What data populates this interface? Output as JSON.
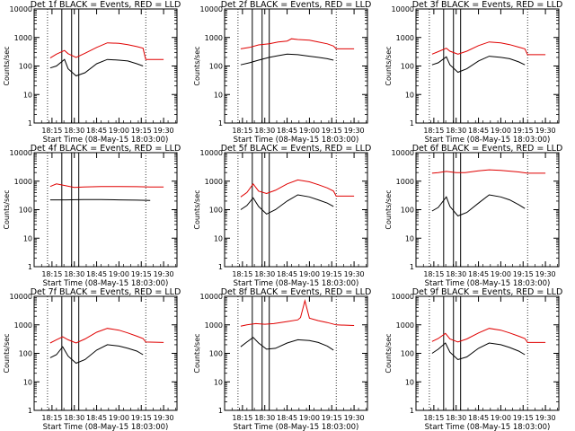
{
  "figure": {
    "x_axis_title": "Start Time (08-May-15 18:03:00)",
    "y_axis_title": "Counts/sec",
    "y_ticks": [
      "1",
      "10",
      "100",
      "1000",
      "10000"
    ],
    "x_ticks": [
      "18:15",
      "18:30",
      "18:45",
      "19:00",
      "19:15",
      "19:30"
    ]
  },
  "colors": {
    "events": "#000000",
    "lld": "#e00000",
    "axes": "#000000"
  },
  "chart_data": [
    {
      "type": "line",
      "title": "Det 1f BLACK = Events, RED = LLD",
      "yscale": "log",
      "ylim": [
        1,
        10000
      ],
      "series": [
        {
          "name": "Events",
          "color": "#000000",
          "x": [
            18.23,
            18.3,
            18.39,
            18.43,
            18.52,
            18.62,
            18.75,
            18.87,
            19.0,
            19.1,
            19.2,
            19.27
          ],
          "y": [
            85,
            100,
            170,
            80,
            45,
            58,
            120,
            170,
            160,
            150,
            120,
            100
          ]
        },
        {
          "name": "LLD",
          "color": "#e00000",
          "x": [
            18.23,
            18.3,
            18.39,
            18.43,
            18.52,
            18.62,
            18.75,
            18.87,
            19.0,
            19.1,
            19.2,
            19.27,
            19.3,
            19.5
          ],
          "y": [
            190,
            260,
            350,
            270,
            200,
            280,
            450,
            650,
            620,
            560,
            480,
            420,
            170,
            170
          ]
        }
      ]
    },
    {
      "type": "line",
      "title": "Det 2f BLACK = Events, RED = LLD",
      "yscale": "log",
      "ylim": [
        1,
        10000
      ],
      "series": [
        {
          "name": "Events",
          "color": "#000000",
          "x": [
            18.23,
            18.33,
            18.43,
            18.55,
            18.65,
            18.75,
            18.87,
            19.0,
            19.1,
            19.2,
            19.27
          ],
          "y": [
            110,
            130,
            160,
            200,
            230,
            260,
            250,
            220,
            200,
            180,
            160
          ]
        },
        {
          "name": "LLD",
          "color": "#e00000",
          "x": [
            18.23,
            18.33,
            18.43,
            18.55,
            18.65,
            18.75,
            18.8,
            18.87,
            19.0,
            19.1,
            19.2,
            19.27,
            19.3,
            19.5
          ],
          "y": [
            400,
            450,
            550,
            600,
            700,
            750,
            900,
            850,
            800,
            700,
            600,
            500,
            400,
            400
          ]
        }
      ]
    },
    {
      "type": "line",
      "title": "Det 3f BLACK = Events, RED = LLD",
      "yscale": "log",
      "ylim": [
        1,
        10000
      ],
      "series": [
        {
          "name": "Events",
          "color": "#000000",
          "x": [
            18.23,
            18.3,
            18.39,
            18.43,
            18.52,
            18.62,
            18.75,
            18.87,
            19.0,
            19.1,
            19.2,
            19.27
          ],
          "y": [
            110,
            130,
            210,
            110,
            60,
            80,
            150,
            220,
            200,
            180,
            140,
            110
          ]
        },
        {
          "name": "LLD",
          "color": "#e00000",
          "x": [
            18.23,
            18.3,
            18.39,
            18.43,
            18.52,
            18.62,
            18.75,
            18.87,
            19.0,
            19.1,
            19.2,
            19.27,
            19.3,
            19.5
          ],
          "y": [
            260,
            320,
            420,
            330,
            260,
            330,
            520,
            700,
            650,
            560,
            460,
            400,
            250,
            250
          ]
        }
      ]
    },
    {
      "type": "line",
      "title": "Det 4f BLACK = Events, RED = LLD",
      "yscale": "log",
      "ylim": [
        1,
        10000
      ],
      "series": [
        {
          "name": "Events",
          "color": "#000000",
          "x": [
            18.23,
            18.4,
            18.6,
            18.8,
            19.0,
            19.2,
            19.35
          ],
          "y": [
            220,
            220,
            225,
            225,
            220,
            215,
            210
          ]
        },
        {
          "name": "LLD",
          "color": "#e00000",
          "x": [
            18.23,
            18.3,
            18.4,
            18.5,
            18.6,
            18.8,
            19.0,
            19.2,
            19.35,
            19.5
          ],
          "y": [
            650,
            800,
            700,
            600,
            620,
            650,
            650,
            640,
            620,
            620
          ]
        }
      ]
    },
    {
      "type": "line",
      "title": "Det 5f BLACK = Events, RED = LLD",
      "yscale": "log",
      "ylim": [
        1,
        10000
      ],
      "series": [
        {
          "name": "Events",
          "color": "#000000",
          "x": [
            18.23,
            18.3,
            18.37,
            18.43,
            18.52,
            18.62,
            18.75,
            18.87,
            19.0,
            19.1,
            19.2,
            19.27
          ],
          "y": [
            100,
            140,
            260,
            130,
            70,
            100,
            200,
            330,
            280,
            220,
            170,
            130
          ]
        },
        {
          "name": "LLD",
          "color": "#e00000",
          "x": [
            18.23,
            18.3,
            18.37,
            18.43,
            18.52,
            18.62,
            18.75,
            18.87,
            19.0,
            19.1,
            19.2,
            19.27,
            19.3,
            19.5
          ],
          "y": [
            280,
            400,
            800,
            450,
            370,
            480,
            800,
            1100,
            950,
            750,
            580,
            450,
            300,
            300
          ]
        }
      ]
    },
    {
      "type": "line",
      "title": "Det 6f BLACK = Events, RED = LLD",
      "yscale": "log",
      "ylim": [
        1,
        10000
      ],
      "series": [
        {
          "name": "Events",
          "color": "#000000",
          "x": [
            18.23,
            18.3,
            18.39,
            18.43,
            18.52,
            18.62,
            18.75,
            18.87,
            19.0,
            19.1,
            19.2,
            19.27
          ],
          "y": [
            90,
            120,
            280,
            130,
            60,
            80,
            170,
            330,
            280,
            220,
            150,
            110
          ]
        },
        {
          "name": "LLD",
          "color": "#e00000",
          "x": [
            18.23,
            18.3,
            18.39,
            18.5,
            18.6,
            18.75,
            18.87,
            19.0,
            19.2,
            19.3,
            19.5
          ],
          "y": [
            1900,
            2000,
            2200,
            2000,
            2000,
            2300,
            2500,
            2400,
            2100,
            1900,
            1900
          ]
        }
      ]
    },
    {
      "type": "line",
      "title": "Det 7f BLACK = Events, RED = LLD",
      "yscale": "log",
      "ylim": [
        1,
        10000
      ],
      "series": [
        {
          "name": "Events",
          "color": "#000000",
          "x": [
            18.23,
            18.3,
            18.37,
            18.43,
            18.52,
            18.62,
            18.75,
            18.87,
            19.0,
            19.1,
            19.2,
            19.27
          ],
          "y": [
            70,
            90,
            170,
            80,
            45,
            60,
            130,
            200,
            180,
            150,
            120,
            90
          ]
        },
        {
          "name": "LLD",
          "color": "#e00000",
          "x": [
            18.23,
            18.3,
            18.37,
            18.43,
            18.52,
            18.62,
            18.75,
            18.87,
            19.0,
            19.1,
            19.2,
            19.27,
            19.3,
            19.5
          ],
          "y": [
            230,
            300,
            380,
            300,
            230,
            320,
            550,
            750,
            650,
            520,
            400,
            330,
            250,
            240
          ]
        }
      ]
    },
    {
      "type": "line",
      "title": "Det 8f BLACK = Events, RED = LLD",
      "yscale": "log",
      "ylim": [
        1,
        10000
      ],
      "series": [
        {
          "name": "Events",
          "color": "#000000",
          "x": [
            18.23,
            18.3,
            18.37,
            18.43,
            18.52,
            18.62,
            18.75,
            18.87,
            19.0,
            19.1,
            19.2,
            19.27
          ],
          "y": [
            170,
            250,
            360,
            230,
            140,
            150,
            230,
            300,
            280,
            240,
            180,
            130
          ]
        },
        {
          "name": "LLD",
          "color": "#e00000",
          "x": [
            18.23,
            18.3,
            18.4,
            18.5,
            18.6,
            18.75,
            18.87,
            18.9,
            18.95,
            19.0,
            19.1,
            19.2,
            19.3,
            19.5
          ],
          "y": [
            900,
            1000,
            1100,
            1050,
            1100,
            1300,
            1500,
            1800,
            7000,
            1700,
            1400,
            1200,
            1000,
            950
          ]
        }
      ]
    },
    {
      "type": "line",
      "title": "Det 9f BLACK = Events, RED = LLD",
      "yscale": "log",
      "ylim": [
        1,
        10000
      ],
      "series": [
        {
          "name": "Events",
          "color": "#000000",
          "x": [
            18.23,
            18.3,
            18.38,
            18.43,
            18.52,
            18.62,
            18.75,
            18.87,
            19.0,
            19.1,
            19.2,
            19.27
          ],
          "y": [
            100,
            140,
            230,
            110,
            60,
            75,
            150,
            230,
            200,
            160,
            120,
            90
          ]
        },
        {
          "name": "LLD",
          "color": "#e00000",
          "x": [
            18.23,
            18.3,
            18.38,
            18.43,
            18.52,
            18.62,
            18.75,
            18.87,
            19.0,
            19.1,
            19.2,
            19.27,
            19.3,
            19.5
          ],
          "y": [
            260,
            330,
            500,
            320,
            250,
            320,
            520,
            750,
            650,
            520,
            400,
            330,
            240,
            240
          ]
        }
      ]
    }
  ]
}
